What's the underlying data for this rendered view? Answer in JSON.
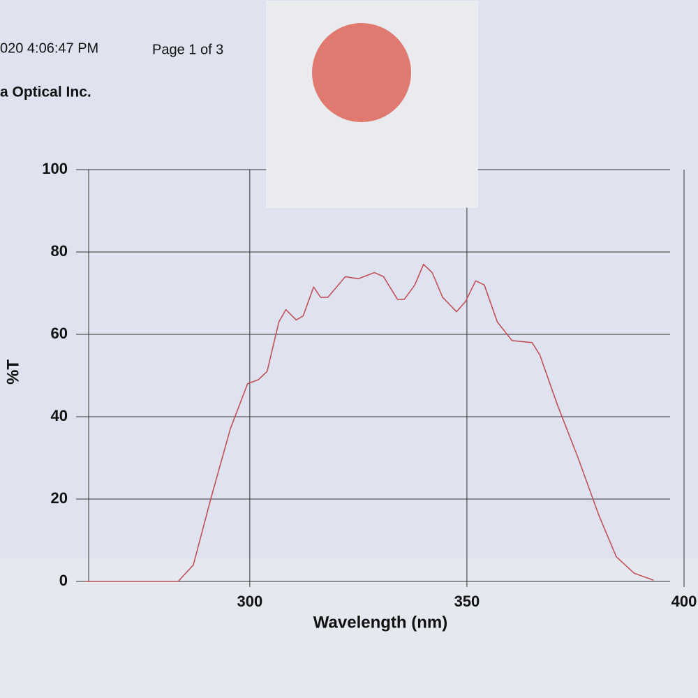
{
  "chart_data": {
    "type": "line",
    "header_left": "020 4:06:47 PM",
    "header_right": "Page 1 of 3",
    "company": "a Optical Inc.",
    "y_label": "%T",
    "x_label": "Wavelength (nm)",
    "xlim": [
      260,
      400
    ],
    "xticks": [
      300,
      350,
      400
    ],
    "ylim": [
      0,
      100
    ],
    "yticks": [
      0,
      20,
      40,
      60,
      80,
      100
    ],
    "grid": true,
    "series": [
      {
        "color": "#c0505a",
        "x": [
          262,
          283.5,
          287,
          291,
          295.5,
          299.5,
          302,
          304,
          306.7,
          308.3,
          310.7,
          312.3,
          314.7,
          316.3,
          318,
          322,
          325,
          328.7,
          330.8,
          334,
          335.6,
          338,
          340,
          342,
          344.4,
          347.6,
          349.7,
          352,
          354,
          357,
          360.4,
          365,
          366.8,
          370.8,
          375.6,
          380.4,
          384.4,
          388.5,
          393
        ],
        "values": [
          0,
          0,
          4,
          20,
          37,
          48,
          49,
          51,
          63,
          66,
          63.5,
          64.5,
          71.5,
          69,
          69,
          74,
          73.5,
          75,
          74,
          68.5,
          68.5,
          72,
          77,
          75,
          69,
          65.5,
          68,
          73,
          72,
          63,
          58.5,
          58,
          55,
          43,
          30,
          16,
          6,
          2,
          0.3
        ]
      }
    ]
  }
}
